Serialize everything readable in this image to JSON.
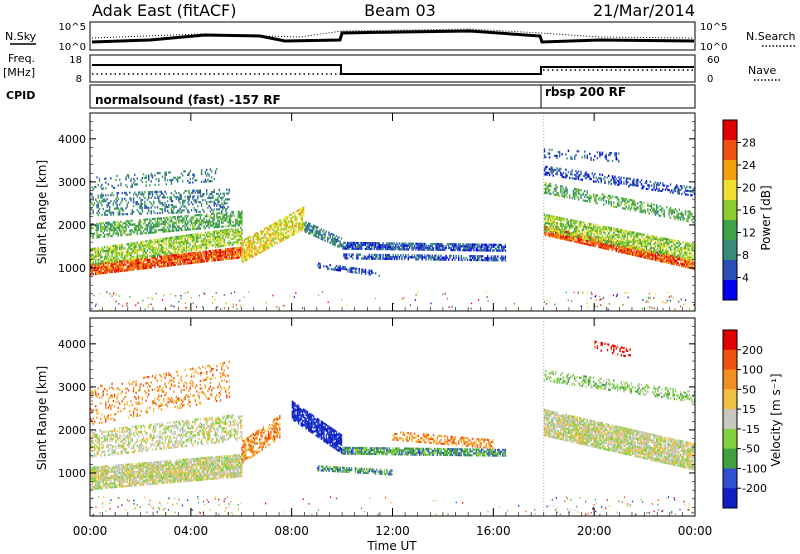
{
  "header": {
    "station": "Adak East (fitACF)",
    "beam": "Beam 03",
    "date": "21/Mar/2014"
  },
  "sky_panel": {
    "left_label": "N.Sky",
    "right_label": "N.Search",
    "tick_top": "10^5",
    "tick_bottom": "10^0"
  },
  "freq_panel": {
    "left_label_1": "Freq.",
    "left_label_2": "[MHz]",
    "left_tick_top": "18",
    "left_tick_bottom": "8",
    "right_label": "Nave",
    "right_tick_top": "60",
    "right_tick_bottom": "0"
  },
  "cpid_panel": {
    "label": "CPID",
    "program_1": "normalsound (fast) -157 RF",
    "program_2": "rbsp 200 RF"
  },
  "chart_data": [
    {
      "type": "heatmap",
      "name": "power",
      "ylabel": "Slant Range [km]",
      "yticks": [
        "1000",
        "2000",
        "3000",
        "4000"
      ],
      "ylim": [
        0,
        4600
      ],
      "xlim_hours": [
        0,
        24
      ],
      "colorbar_label": "Power [dB]",
      "colorbar_ticks": [
        "28",
        "24",
        "20",
        "16",
        "12",
        "8",
        "4"
      ],
      "colors": [
        "#0000ee",
        "#2b4fb6",
        "#3a8a7a",
        "#3fa34a",
        "#8ccc30",
        "#f0e030",
        "#f4a010",
        "#f05010",
        "#e00000"
      ]
    },
    {
      "type": "heatmap",
      "name": "velocity",
      "ylabel": "Slant Range [km]",
      "yticks": [
        "1000",
        "2000",
        "3000",
        "4000"
      ],
      "ylim": [
        0,
        4600
      ],
      "xlim_hours": [
        0,
        24
      ],
      "colorbar_label": "Velocity [m s⁻¹]",
      "colorbar_ticks": [
        "200",
        "100",
        "50",
        "15",
        "-15",
        "-50",
        "-100",
        "-200"
      ],
      "colors": [
        "#1020c0",
        "#3050d0",
        "#40a040",
        "#80d040",
        "#c8c8c0",
        "#f0c040",
        "#f09020",
        "#f05010",
        "#e00000"
      ]
    }
  ],
  "xaxis": {
    "label": "Time UT",
    "ticks": [
      "00:00",
      "04:00",
      "08:00",
      "12:00",
      "16:00",
      "20:00",
      "00:00"
    ]
  }
}
